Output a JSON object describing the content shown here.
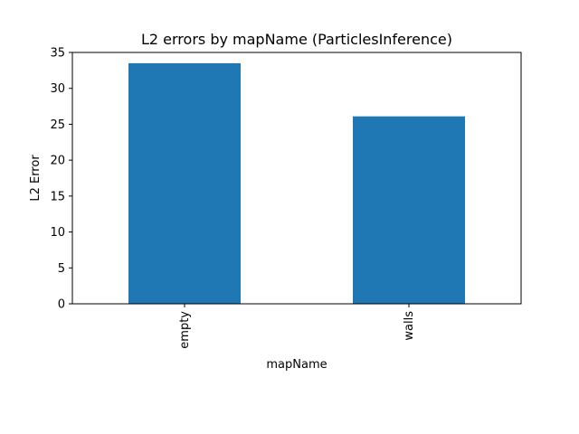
{
  "chart_data": {
    "type": "bar",
    "title": "L2 errors by mapName (ParticlesInference)",
    "xlabel": "mapName",
    "ylabel": "L2 Error",
    "categories": [
      "empty",
      "walls"
    ],
    "values": [
      33.5,
      26.1
    ],
    "ylim": [
      0,
      35
    ],
    "yticks": [
      0,
      5,
      10,
      15,
      20,
      25,
      30,
      35
    ],
    "ytick_labels": [
      "0",
      "5",
      "10",
      "15",
      "20",
      "25",
      "30",
      "35"
    ],
    "x_tick_rotation": 90,
    "grid": false,
    "legend": "none",
    "bar_color": "#1f77b4"
  }
}
